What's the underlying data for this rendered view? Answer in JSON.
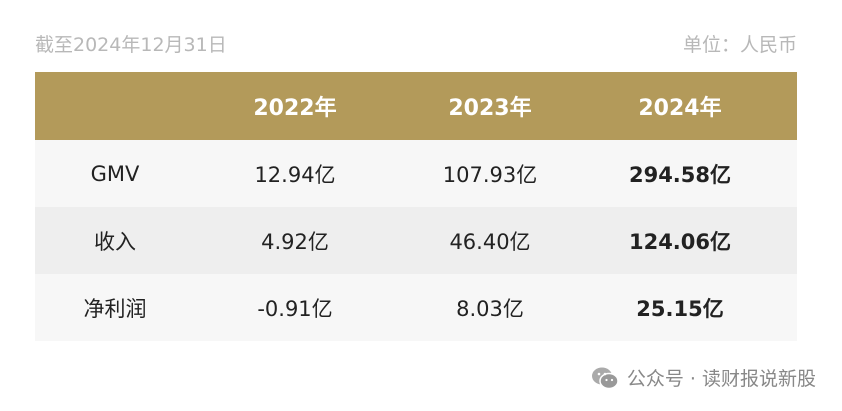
{
  "header": {
    "note": "截至2024年12月31日",
    "unit": "单位：人民币"
  },
  "table": {
    "columns": [
      "2022年",
      "2023年",
      "2024年"
    ],
    "rows": [
      {
        "label": "GMV",
        "cells": [
          "12.94亿",
          "107.93亿",
          "294.58亿"
        ]
      },
      {
        "label": "收入",
        "cells": [
          "4.92亿",
          "46.40亿",
          "124.06亿"
        ]
      },
      {
        "label": "净利润",
        "cells": [
          "-0.91亿",
          "8.03亿",
          "25.15亿"
        ]
      }
    ]
  },
  "watermark": "公众号 · 读财报说新股"
}
